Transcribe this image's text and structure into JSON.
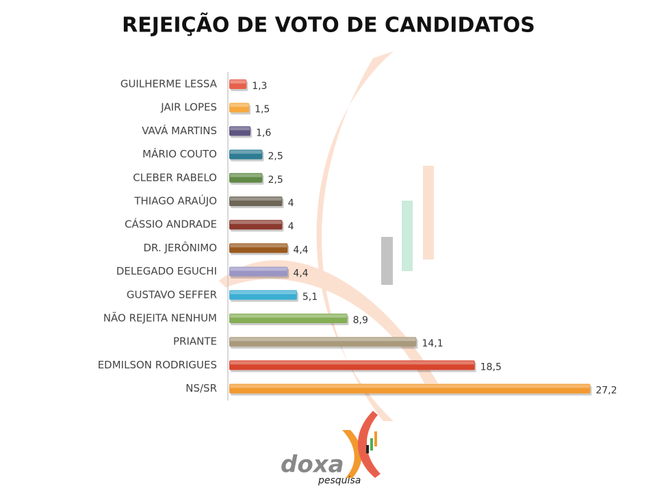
{
  "chart_data": {
    "type": "hbar",
    "title": "REJEIÇÃO DE VOTO DE CANDIDATOS",
    "categories": [
      "GUILHERME LESSA",
      "JAIR LOPES",
      "VAVÁ MARTINS",
      "MÁRIO COUTO",
      "CLEBER RABELO",
      "THIAGO ARAÚJO",
      "CÁSSIO ANDRADE",
      "DR. JERÔNIMO",
      "DELEGADO EGUCHI",
      "GUSTAVO SEFFER",
      "NÃO REJEITA NENHUM",
      "PRIANTE",
      "EDMILSON RODRIGUES",
      "NS/SR"
    ],
    "values": [
      1.3,
      1.5,
      1.6,
      2.5,
      2.5,
      4,
      4,
      4.4,
      4.4,
      5.1,
      8.9,
      14.1,
      18.5,
      27.2
    ],
    "value_labels": [
      "1,3",
      "1,5",
      "1,6",
      "2,5",
      "2,5",
      "4",
      "4",
      "4,4",
      "4,4",
      "5,1",
      "8,9",
      "14,1",
      "18,5",
      "27,2"
    ],
    "colors": [
      "#e8604c",
      "#f5a93f",
      "#5e5580",
      "#2e7c94",
      "#5f8a45",
      "#6e6656",
      "#8c3a2e",
      "#9a5a1e",
      "#9a95c4",
      "#3aaed3",
      "#85ae55",
      "#a99a7c",
      "#d8452d",
      "#f29a30"
    ],
    "xlim": [
      0,
      28
    ]
  },
  "logo": {
    "name": "doxa",
    "tagline": "pesquisa"
  }
}
